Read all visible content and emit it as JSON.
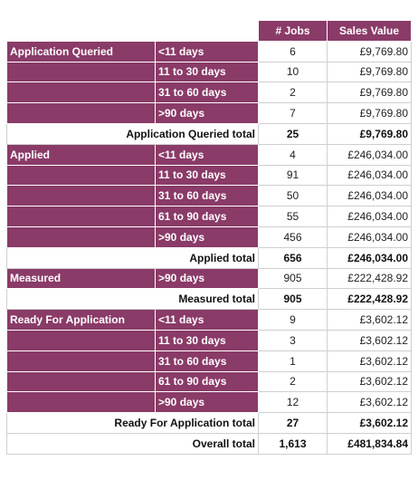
{
  "header": {
    "jobs_label": "# Jobs",
    "sales_label": "Sales Value"
  },
  "groups": [
    {
      "name": "Application Queried",
      "rows": [
        {
          "band": "<11 days",
          "jobs": "6",
          "value": "£9,769.80"
        },
        {
          "band": "11 to 30 days",
          "jobs": "10",
          "value": "£9,769.80"
        },
        {
          "band": "31 to 60 days",
          "jobs": "2",
          "value": "£9,769.80"
        },
        {
          "band": ">90 days",
          "jobs": "7",
          "value": "£9,769.80"
        }
      ],
      "total_label": "Application Queried total",
      "total_jobs": "25",
      "total_value": "£9,769.80"
    },
    {
      "name": "Applied",
      "rows": [
        {
          "band": "<11 days",
          "jobs": "4",
          "value": "£246,034.00"
        },
        {
          "band": "11 to 30 days",
          "jobs": "91",
          "value": "£246,034.00"
        },
        {
          "band": "31 to 60 days",
          "jobs": "50",
          "value": "£246,034.00"
        },
        {
          "band": "61 to 90 days",
          "jobs": "55",
          "value": "£246,034.00"
        },
        {
          "band": ">90 days",
          "jobs": "456",
          "value": "£246,034.00"
        }
      ],
      "total_label": "Applied total",
      "total_jobs": "656",
      "total_value": "£246,034.00"
    },
    {
      "name": "Measured",
      "rows": [
        {
          "band": ">90 days",
          "jobs": "905",
          "value": "£222,428.92"
        }
      ],
      "total_label": "Measured total",
      "total_jobs": "905",
      "total_value": "£222,428.92"
    },
    {
      "name": "Ready For Application",
      "rows": [
        {
          "band": "<11 days",
          "jobs": "9",
          "value": "£3,602.12"
        },
        {
          "band": "11 to 30 days",
          "jobs": "3",
          "value": "£3,602.12"
        },
        {
          "band": "31 to 60 days",
          "jobs": "1",
          "value": "£3,602.12"
        },
        {
          "band": "61 to 90 days",
          "jobs": "2",
          "value": "£3,602.12"
        },
        {
          "band": ">90 days",
          "jobs": "12",
          "value": "£3,602.12"
        }
      ],
      "total_label": "Ready For Application total",
      "total_jobs": "27",
      "total_value": "£3,602.12"
    }
  ],
  "overall": {
    "label": "Overall total",
    "jobs": "1,613",
    "value": "£481,834.84"
  },
  "colors": {
    "header_bg": "#8a3b68",
    "header_text": "#ffffff",
    "border": "#cfcfcf"
  }
}
